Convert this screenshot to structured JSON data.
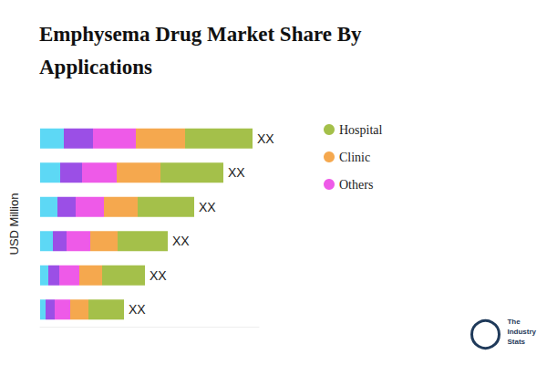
{
  "chart_data": {
    "type": "bar",
    "title": "Emphysema Drug Market Share By Applications",
    "y_label": "USD Million",
    "orientation": "horizontal",
    "stacked": true,
    "tick_labels": false,
    "legend": "right",
    "categories": [
      null,
      null,
      null,
      null,
      null,
      null
    ],
    "xlim": [
      0,
      240
    ],
    "series": [
      {
        "name": null,
        "color": "#5dd8f5",
        "values": [
          26,
          22,
          19,
          14,
          9,
          6
        ]
      },
      {
        "name": null,
        "color": "#9b4fe6",
        "values": [
          32,
          24,
          20,
          15,
          12,
          10
        ]
      },
      {
        "name": "Others",
        "color": "#ee5ae8",
        "values": [
          47,
          38,
          31,
          26,
          22,
          17
        ]
      },
      {
        "name": "Clinic",
        "color": "#f5a84e",
        "values": [
          54,
          48,
          37,
          30,
          25,
          20
        ]
      },
      {
        "name": "Hospital",
        "color": "#a4c04a",
        "values": [
          74,
          69,
          62,
          55,
          47,
          39
        ]
      }
    ],
    "legend_order": [
      "Hospital",
      "Clinic",
      "Others"
    ],
    "annotations": [
      "XX",
      "XX",
      "XX",
      "XX",
      "XX",
      "XX"
    ],
    "watermark": "The Industry Stats"
  }
}
